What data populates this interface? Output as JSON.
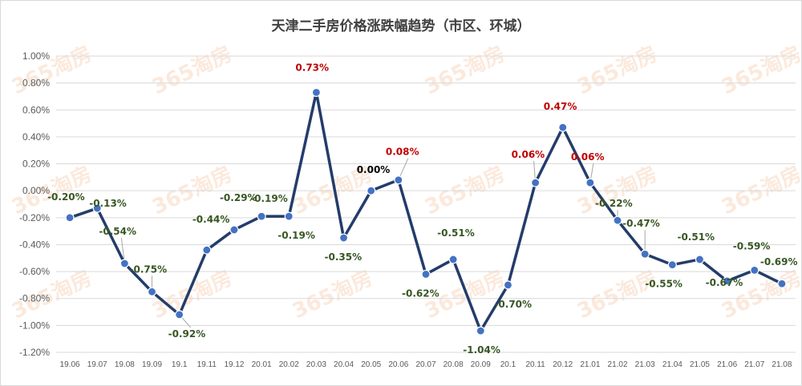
{
  "chart_data": {
    "type": "line",
    "title": "天津二手房价格涨跌幅趋势（市区、环城）",
    "categories": [
      "19.06",
      "19.07",
      "19.08",
      "19.09",
      "19.1",
      "19.11",
      "19.12",
      "20.01",
      "20.02",
      "20.03",
      "20.04",
      "20.05",
      "20.06",
      "20.07",
      "20.08",
      "20.09",
      "20.1",
      "20.11",
      "20.12",
      "21.01",
      "21.02",
      "21.03",
      "21.04",
      "21.05",
      "21.06",
      "21.07",
      "21.08"
    ],
    "values": [
      -0.2,
      -0.13,
      -0.54,
      -0.75,
      -0.92,
      -0.44,
      -0.29,
      -0.19,
      -0.19,
      0.73,
      -0.35,
      0.0,
      0.08,
      -0.62,
      -0.51,
      -1.04,
      -0.7,
      0.06,
      0.47,
      0.06,
      -0.22,
      -0.47,
      -0.55,
      -0.51,
      -0.67,
      -0.59,
      -0.69
    ],
    "data_labels": [
      "-0.20%",
      "-0.13%",
      "-0.54%",
      "-0.75%",
      "-0.92%",
      "-0.44%",
      "-0.29%",
      "-0.19%",
      "-0.19%",
      "0.73%",
      "-0.35%",
      "0.00%",
      "0.08%",
      "-0.62%",
      "-0.51%",
      "-1.04%",
      "-0.70%",
      "0.06%",
      "0.47%",
      "0.06%",
      "-0.22%",
      "-0.47%",
      "-0.55%",
      "-0.51%",
      "-0.67%",
      "-0.59%",
      "-0.69%"
    ],
    "ylim": [
      -1.2,
      1.0
    ],
    "y_ticks": [
      "1.00%",
      "0.80%",
      "0.60%",
      "0.40%",
      "0.20%",
      "0.00%",
      "-0.20%",
      "-0.40%",
      "-0.60%",
      "-0.80%",
      "-1.00%",
      "-1.20%"
    ],
    "grid": true,
    "colors": {
      "line": "#243c6b",
      "marker": "#4472c4",
      "positive": "#c00000",
      "negative": "#375623",
      "zero": "#000000",
      "grid": "#d9d9d9",
      "watermark": "#f4b183"
    },
    "watermark": "365淘房"
  }
}
